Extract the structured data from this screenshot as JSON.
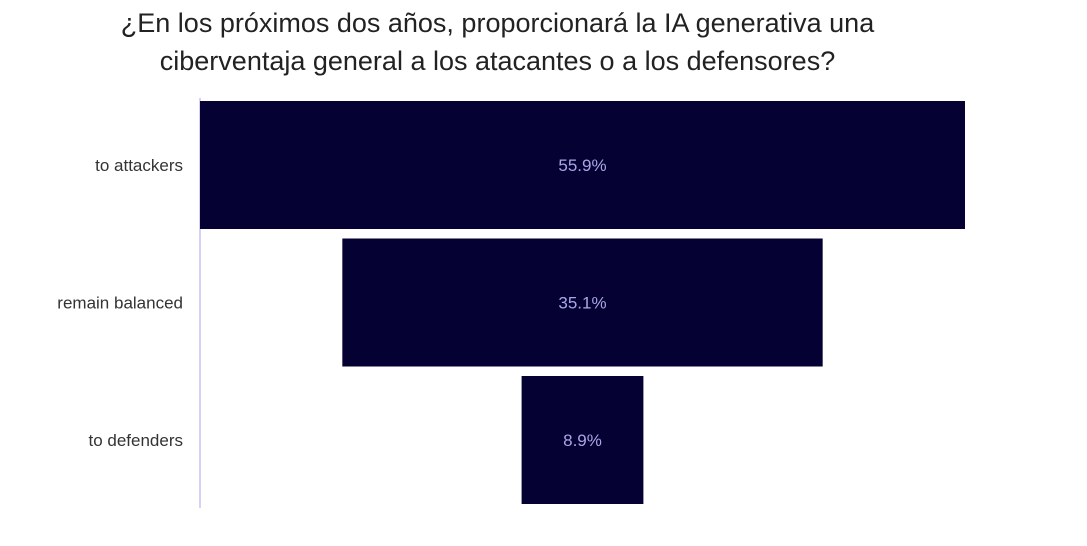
{
  "chart_data": {
    "type": "funnel",
    "title_lines": [
      "¿En los próximos dos años, proporcionará la IA generativa una",
      "ciberventaja general a los atacantes o a los defensores?"
    ],
    "categories": [
      "to attackers",
      "remain balanced",
      "to defenders"
    ],
    "values": [
      55.9,
      35.1,
      8.9
    ],
    "data_labels": [
      "55.9%",
      "35.1%",
      "8.9%"
    ],
    "unit": "%",
    "bar_color": "#050133",
    "label_color": "#a9a6e8",
    "axis_color": "#c8c4f0",
    "legend": "none",
    "grid": false
  }
}
